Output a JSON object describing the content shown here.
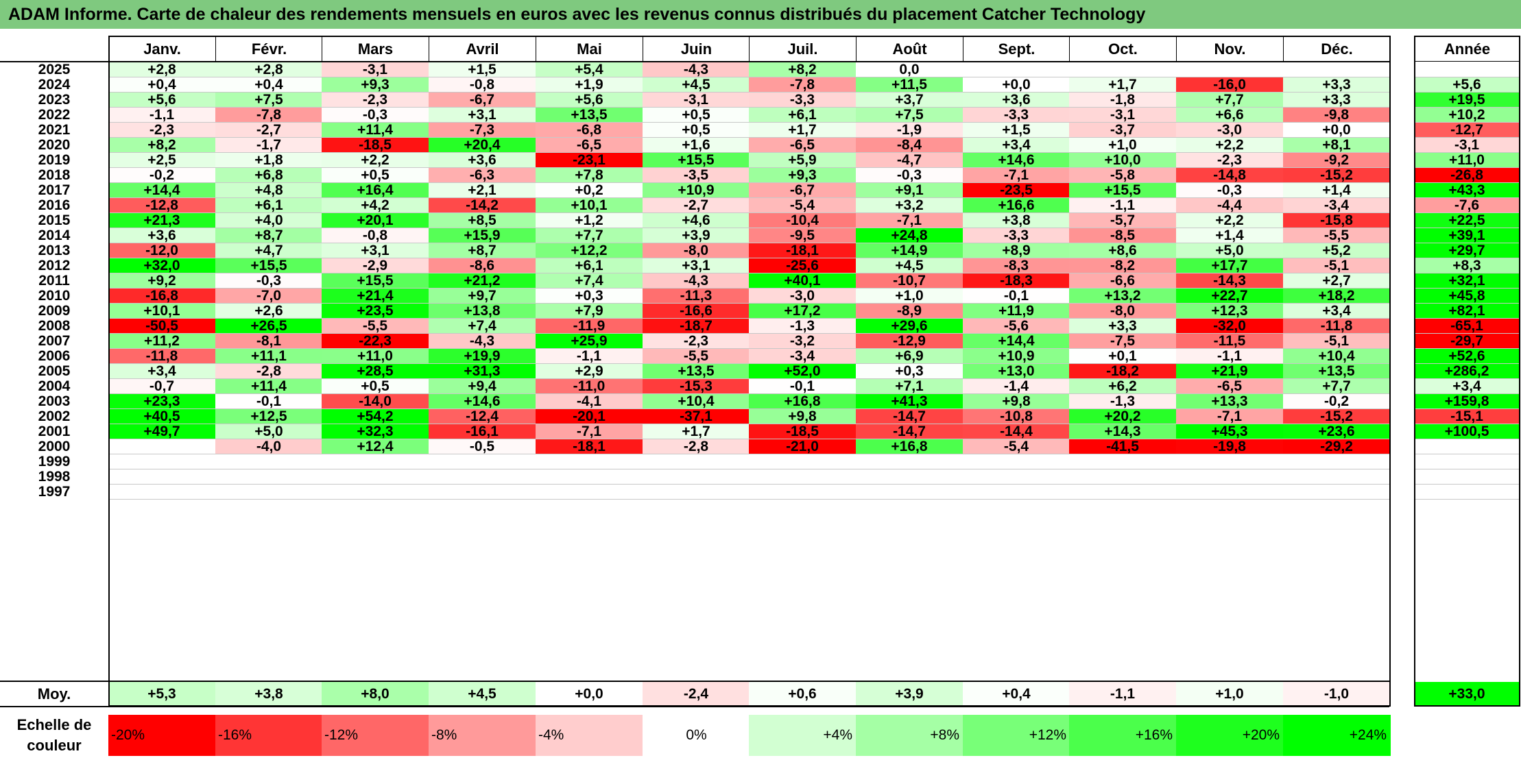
{
  "title": "ADAM Informe. Carte de chaleur des rendements mensuels en euros avec les revenus connus distribués du placement Catcher Technology",
  "chart_data": {
    "type": "heatmap",
    "title": "ADAM Informe. Carte de chaleur des rendements mensuels en euros avec les revenus connus distribués du placement Catcher Technology",
    "months": [
      "Janv.",
      "Févr.",
      "Mars",
      "Avril",
      "Mai",
      "Juin",
      "Juil.",
      "Août",
      "Sept.",
      "Oct.",
      "Nov.",
      "Déc."
    ],
    "year_header": "Année",
    "rows": [
      {
        "year": "2025",
        "values": [
          "+2,8",
          "+2,8",
          "-3,1",
          "+1,5",
          "+5,4",
          "-4,3",
          "+8,2",
          "0,0",
          "",
          "",
          "",
          ""
        ],
        "annual": ""
      },
      {
        "year": "2024",
        "values": [
          "+0,4",
          "+0,4",
          "+9,3",
          "-0,8",
          "+1,9",
          "+4,5",
          "-7,8",
          "+11,5",
          "+0,0",
          "+1,7",
          "-16,0",
          "+3,3"
        ],
        "annual": "+5,6"
      },
      {
        "year": "2023",
        "values": [
          "+5,6",
          "+7,5",
          "-2,3",
          "-6,7",
          "+5,6",
          "-3,1",
          "-3,3",
          "+3,7",
          "+3,6",
          "-1,8",
          "+7,7",
          "+3,3"
        ],
        "annual": "+19,5"
      },
      {
        "year": "2022",
        "values": [
          "-1,1",
          "-7,8",
          "-0,3",
          "+3,1",
          "+13,5",
          "+0,5",
          "+6,1",
          "+7,5",
          "-3,3",
          "-3,1",
          "+6,6",
          "-9,8"
        ],
        "annual": "+10,2"
      },
      {
        "year": "2021",
        "values": [
          "-2,3",
          "-2,7",
          "+11,4",
          "-7,3",
          "-6,8",
          "+0,5",
          "+1,7",
          "-1,9",
          "+1,5",
          "-3,7",
          "-3,0",
          "+0,0"
        ],
        "annual": "-12,7"
      },
      {
        "year": "2020",
        "values": [
          "+8,2",
          "-1,7",
          "-18,5",
          "+20,4",
          "-6,5",
          "+1,6",
          "-6,5",
          "-8,4",
          "+3,4",
          "+1,0",
          "+2,2",
          "+8,1"
        ],
        "annual": "-3,1"
      },
      {
        "year": "2019",
        "values": [
          "+2,5",
          "+1,8",
          "+2,2",
          "+3,6",
          "-23,1",
          "+15,5",
          "+5,9",
          "-4,7",
          "+14,6",
          "+10,0",
          "-2,3",
          "-9,2"
        ],
        "annual": "+11,0"
      },
      {
        "year": "2018",
        "values": [
          "-0,2",
          "+6,8",
          "+0,5",
          "-6,3",
          "+7,8",
          "-3,5",
          "+9,3",
          "-0,3",
          "-7,1",
          "-5,8",
          "-14,8",
          "-15,2"
        ],
        "annual": "-26,8"
      },
      {
        "year": "2017",
        "values": [
          "+14,4",
          "+4,8",
          "+16,4",
          "+2,1",
          "+0,2",
          "+10,9",
          "-6,7",
          "+9,1",
          "-23,5",
          "+15,5",
          "-0,3",
          "+1,4"
        ],
        "annual": "+43,3"
      },
      {
        "year": "2016",
        "values": [
          "-12,8",
          "+6,1",
          "+4,2",
          "-14,2",
          "+10,1",
          "-2,7",
          "-5,4",
          "+3,2",
          "+16,6",
          "-1,1",
          "-4,4",
          "-3,4"
        ],
        "annual": "-7,6"
      },
      {
        "year": "2015",
        "values": [
          "+21,3",
          "+4,0",
          "+20,1",
          "+8,5",
          "+1,2",
          "+4,6",
          "-10,4",
          "-7,1",
          "+3,8",
          "-5,7",
          "+2,2",
          "-15,8"
        ],
        "annual": "+22,5"
      },
      {
        "year": "2014",
        "values": [
          "+3,6",
          "+8,7",
          "-0,8",
          "+15,9",
          "+7,7",
          "+3,9",
          "-9,5",
          "+24,8",
          "-3,3",
          "-8,5",
          "+1,4",
          "-5,5"
        ],
        "annual": "+39,1"
      },
      {
        "year": "2013",
        "values": [
          "-12,0",
          "+4,7",
          "+3,1",
          "+8,7",
          "+12,2",
          "-8,0",
          "-18,1",
          "+14,9",
          "+8,9",
          "+8,6",
          "+5,0",
          "+5,2"
        ],
        "annual": "+29,7"
      },
      {
        "year": "2012",
        "values": [
          "+32,0",
          "+15,5",
          "-2,9",
          "-8,6",
          "+6,1",
          "+3,1",
          "-25,6",
          "+4,5",
          "-8,3",
          "-8,2",
          "+17,7",
          "-5,1"
        ],
        "annual": "+8,3"
      },
      {
        "year": "2011",
        "values": [
          "+9,2",
          "-0,3",
          "+15,5",
          "+21,2",
          "+7,4",
          "-4,3",
          "+40,1",
          "-10,7",
          "-18,3",
          "-6,6",
          "-14,3",
          "+2,7"
        ],
        "annual": "+32,1"
      },
      {
        "year": "2010",
        "values": [
          "-16,8",
          "-7,0",
          "+21,4",
          "+9,7",
          "+0,3",
          "-11,3",
          "-3,0",
          "+1,0",
          "-0,1",
          "+13,2",
          "+22,7",
          "+18,2"
        ],
        "annual": "+45,8"
      },
      {
        "year": "2009",
        "values": [
          "+10,1",
          "+2,6",
          "+23,5",
          "+13,8",
          "+7,9",
          "-16,6",
          "+17,2",
          "-8,9",
          "+11,9",
          "-8,0",
          "+12,3",
          "+3,4"
        ],
        "annual": "+82,1"
      },
      {
        "year": "2008",
        "values": [
          "-50,5",
          "+26,5",
          "-5,5",
          "+7,4",
          "-11,9",
          "-18,7",
          "-1,3",
          "+29,6",
          "-5,6",
          "+3,3",
          "-32,0",
          "-11,8"
        ],
        "annual": "-65,1"
      },
      {
        "year": "2007",
        "values": [
          "+11,2",
          "-8,1",
          "-22,3",
          "-4,3",
          "+25,9",
          "-2,3",
          "-3,2",
          "-12,9",
          "+14,4",
          "-7,5",
          "-11,5",
          "-5,1"
        ],
        "annual": "-29,7"
      },
      {
        "year": "2006",
        "values": [
          "-11,8",
          "+11,1",
          "+11,0",
          "+19,9",
          "-1,1",
          "-5,5",
          "-3,4",
          "+6,9",
          "+10,9",
          "+0,1",
          "-1,1",
          "+10,4"
        ],
        "annual": "+52,6"
      },
      {
        "year": "2005",
        "values": [
          "+3,4",
          "-2,8",
          "+28,5",
          "+31,3",
          "+2,9",
          "+13,5",
          "+52,0",
          "+0,3",
          "+13,0",
          "-18,2",
          "+21,9",
          "+13,5"
        ],
        "annual": "+286,2"
      },
      {
        "year": "2004",
        "values": [
          "-0,7",
          "+11,4",
          "+0,5",
          "+9,4",
          "-11,0",
          "-15,3",
          "-0,1",
          "+7,1",
          "-1,4",
          "+6,2",
          "-6,5",
          "+7,7"
        ],
        "annual": "+3,4"
      },
      {
        "year": "2003",
        "values": [
          "+23,3",
          "-0,1",
          "-14,0",
          "+14,6",
          "-4,1",
          "+10,4",
          "+16,8",
          "+41,3",
          "+9,8",
          "-1,3",
          "+13,3",
          "-0,2"
        ],
        "annual": "+159,8"
      },
      {
        "year": "2002",
        "values": [
          "+40,5",
          "+12,5",
          "+54,2",
          "-12,4",
          "-20,1",
          "-37,1",
          "+9,8",
          "-14,7",
          "-10,8",
          "+20,2",
          "-7,1",
          "-15,2"
        ],
        "annual": "-15,1"
      },
      {
        "year": "2001",
        "values": [
          "+49,7",
          "+5,0",
          "+32,3",
          "-16,1",
          "-7,1",
          "+1,7",
          "-18,5",
          "-14,7",
          "-14,4",
          "+14,3",
          "+45,3",
          "+23,6"
        ],
        "annual": "+100,5"
      },
      {
        "year": "2000",
        "values": [
          "",
          "-4,0",
          "+12,4",
          "-0,5",
          "-18,1",
          "-2,8",
          "-21,0",
          "+16,8",
          "-5,4",
          "-41,5",
          "-19,8",
          "-29,2"
        ],
        "annual": ""
      },
      {
        "year": "1999",
        "values": [
          "",
          "",
          "",
          "",
          "",
          "",
          "",
          "",
          "",
          "",
          "",
          ""
        ],
        "annual": ""
      },
      {
        "year": "1998",
        "values": [
          "",
          "",
          "",
          "",
          "",
          "",
          "",
          "",
          "",
          "",
          "",
          ""
        ],
        "annual": ""
      },
      {
        "year": "1997",
        "values": [
          "",
          "",
          "",
          "",
          "",
          "",
          "",
          "",
          "",
          "",
          "",
          ""
        ],
        "annual": ""
      }
    ],
    "average": {
      "label": "Moy.",
      "values": [
        "+5,3",
        "+3,8",
        "+8,0",
        "+4,5",
        "+0,0",
        "-2,4",
        "+0,6",
        "+3,9",
        "+0,4",
        "-1,1",
        "+1,0",
        "-1,0"
      ],
      "annual": "+33,0"
    },
    "color_scale": {
      "label": "Echelle de couleur",
      "stops": [
        {
          "label": "-20%",
          "value": -20,
          "color": "#ff0000"
        },
        {
          "label": "-16%",
          "value": -16,
          "color": "#ff3535"
        },
        {
          "label": "-12%",
          "value": -12,
          "color": "#ff6767"
        },
        {
          "label": "-8%",
          "value": -8,
          "color": "#ff9a9a"
        },
        {
          "label": "-4%",
          "value": -4,
          "color": "#ffcdcd"
        },
        {
          "label": "0%",
          "value": 0,
          "color": "#ffffff"
        },
        {
          "label": "+4%",
          "value": 4,
          "color": "#d2ffd2"
        },
        {
          "label": "+8%",
          "value": 8,
          "color": "#a5ffa5"
        },
        {
          "label": "+12%",
          "value": 12,
          "color": "#78ff78"
        },
        {
          "label": "+16%",
          "value": 16,
          "color": "#4bff4b"
        },
        {
          "label": "+20%",
          "value": 20,
          "color": "#1eff1e"
        },
        {
          "label": "+24%",
          "value": 24,
          "color": "#00ff00"
        }
      ]
    },
    "colors": {
      "title_bar": "#7fc97f",
      "negative_max": "#ff0000",
      "positive_max": "#00ff00",
      "neutral": "#ffffff"
    }
  }
}
